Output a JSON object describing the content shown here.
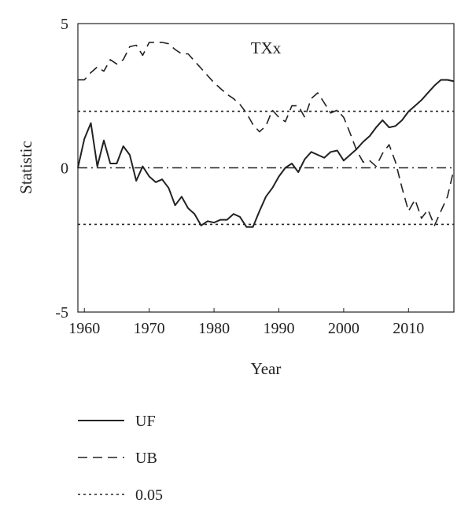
{
  "chart_data": {
    "type": "line",
    "title": "TXx",
    "xlabel": "Year",
    "ylabel": "Statistic",
    "xlim": [
      1959,
      2017
    ],
    "ylim": [
      -5,
      5
    ],
    "xticks": [
      1960,
      1970,
      1980,
      1990,
      2000,
      2010
    ],
    "xtick_labels": [
      "1960",
      "1970",
      "1980",
      "1990",
      "2000",
      "2010"
    ],
    "yticks": [
      -5,
      0,
      5
    ],
    "ytick_labels": [
      "-5",
      "0",
      "5"
    ],
    "grid": false,
    "legend_position": "bottom-left",
    "series": [
      {
        "name": "UF",
        "style": "solid",
        "x": [
          1959,
          1960,
          1961,
          1962,
          1963,
          1964,
          1965,
          1966,
          1967,
          1968,
          1969,
          1970,
          1971,
          1972,
          1973,
          1974,
          1975,
          1976,
          1977,
          1978,
          1979,
          1980,
          1981,
          1982,
          1983,
          1984,
          1985,
          1986,
          1987,
          1988,
          1989,
          1990,
          1991,
          1992,
          1993,
          1994,
          1995,
          1996,
          1997,
          1998,
          1999,
          2000,
          2001,
          2002,
          2003,
          2004,
          2005,
          2006,
          2007,
          2008,
          2009,
          2010,
          2011,
          2012,
          2013,
          2014,
          2015,
          2016,
          2017
        ],
        "values": [
          0,
          1.0,
          1.55,
          0.05,
          0.95,
          0.15,
          0.15,
          0.75,
          0.45,
          -0.45,
          0.05,
          -0.3,
          -0.5,
          -0.4,
          -0.7,
          -1.3,
          -1.0,
          -1.4,
          -1.6,
          -2.0,
          -1.85,
          -1.9,
          -1.8,
          -1.8,
          -1.6,
          -1.7,
          -2.05,
          -2.05,
          -1.5,
          -1.0,
          -0.7,
          -0.3,
          0,
          0.15,
          -0.15,
          0.3,
          0.55,
          0.45,
          0.35,
          0.55,
          0.6,
          0.25,
          0.45,
          0.65,
          0.9,
          1.1,
          1.4,
          1.65,
          1.4,
          1.45,
          1.65,
          1.95,
          2.15,
          2.35,
          2.6,
          2.85,
          3.05,
          3.05,
          3.0
        ]
      },
      {
        "name": "UB",
        "style": "dashed",
        "x": [
          1959,
          1960,
          1961,
          1962,
          1963,
          1964,
          1965,
          1966,
          1967,
          1968,
          1969,
          1970,
          1971,
          1972,
          1973,
          1974,
          1975,
          1976,
          1977,
          1978,
          1979,
          1980,
          1981,
          1982,
          1983,
          1984,
          1985,
          1986,
          1987,
          1988,
          1989,
          1990,
          1991,
          1992,
          1993,
          1994,
          1995,
          1996,
          1997,
          1998,
          1999,
          2000,
          2001,
          2002,
          2003,
          2004,
          2005,
          2006,
          2007,
          2008,
          2009,
          2010,
          2011,
          2012,
          2013,
          2014,
          2015,
          2016,
          2017
        ],
        "values": [
          3.05,
          3.05,
          3.3,
          3.5,
          3.35,
          3.75,
          3.6,
          3.75,
          4.2,
          4.25,
          3.9,
          4.35,
          4.35,
          4.35,
          4.3,
          4.1,
          3.95,
          3.95,
          3.7,
          3.45,
          3.2,
          2.95,
          2.75,
          2.55,
          2.4,
          2.2,
          1.9,
          1.5,
          1.25,
          1.45,
          2.0,
          1.75,
          1.6,
          2.15,
          2.15,
          1.75,
          2.4,
          2.6,
          2.25,
          1.9,
          2.0,
          1.75,
          1.2,
          0.6,
          0.2,
          0.25,
          0.05,
          0.5,
          0.8,
          0.2,
          -0.7,
          -1.5,
          -1.1,
          -1.75,
          -1.45,
          -2.0,
          -1.5,
          -1.0,
          -0.05
        ]
      },
      {
        "name": "0.05",
        "style": "dotted",
        "x": [
          1959,
          2017
        ],
        "values": [
          1.96,
          1.96
        ]
      },
      {
        "name": "",
        "style": "dotted",
        "x": [
          1959,
          2017
        ],
        "values": [
          -1.96,
          -1.96
        ]
      },
      {
        "name": "",
        "style": "dashdot",
        "x": [
          1959,
          2017
        ],
        "values": [
          0,
          0
        ]
      }
    ],
    "legend": [
      "UF",
      "UB",
      "0.05"
    ]
  }
}
